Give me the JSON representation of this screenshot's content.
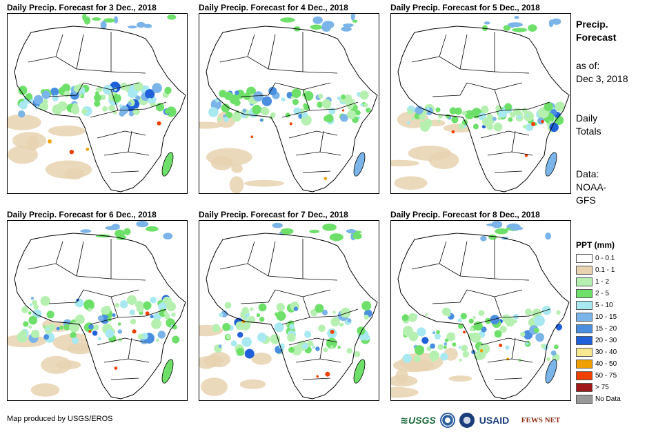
{
  "panels": [
    {
      "title": "Daily Precip. Forecast for 3 Dec., 2018",
      "day": 3
    },
    {
      "title": "Daily Precip. Forecast for 4 Dec., 2018",
      "day": 4
    },
    {
      "title": "Daily Precip. Forecast for 5 Dec., 2018",
      "day": 5
    },
    {
      "title": "Daily Precip. Forecast for 6 Dec., 2018",
      "day": 6
    },
    {
      "title": "Daily Precip. Forecast for 7 Dec., 2018",
      "day": 7
    },
    {
      "title": "Daily Precip. Forecast for 8 Dec., 2018",
      "day": 8
    }
  ],
  "sidebar": {
    "heading_line1": "Precip.",
    "heading_line2": "Forecast",
    "asof_line1": "as of:",
    "asof_line2": "Dec 3, 2018",
    "totals_line1": "Daily",
    "totals_line2": "Totals",
    "data_line1": "Data:",
    "data_line2": "NOAA-",
    "data_line3": "GFS"
  },
  "legend": {
    "title": "PPT (mm)",
    "items": [
      {
        "label": "0 - 0.1",
        "color": "#ffffff"
      },
      {
        "label": "0.1 - 1",
        "color": "#e8d2b0"
      },
      {
        "label": "1 - 2",
        "color": "#b6f0b0"
      },
      {
        "label": "2 - 5",
        "color": "#6ee06a"
      },
      {
        "label": "5 - 10",
        "color": "#a8e8f0"
      },
      {
        "label": "10 - 15",
        "color": "#7ab4e8"
      },
      {
        "label": "15 - 20",
        "color": "#4a8ee0"
      },
      {
        "label": "20 - 30",
        "color": "#2060d8"
      },
      {
        "label": "30 - 40",
        "color": "#f8e890"
      },
      {
        "label": "40 - 50",
        "color": "#f0a000"
      },
      {
        "label": "50 - 75",
        "color": "#f04000"
      },
      {
        "label": "> 75",
        "color": "#a01818"
      },
      {
        "label": "No Data",
        "color": "#999999"
      }
    ]
  },
  "footer": {
    "credit": "Map produced by USGS/EROS",
    "logos": {
      "usgs": "≋USGS",
      "usaid": "USAID",
      "fews": "FEWS NET"
    }
  }
}
